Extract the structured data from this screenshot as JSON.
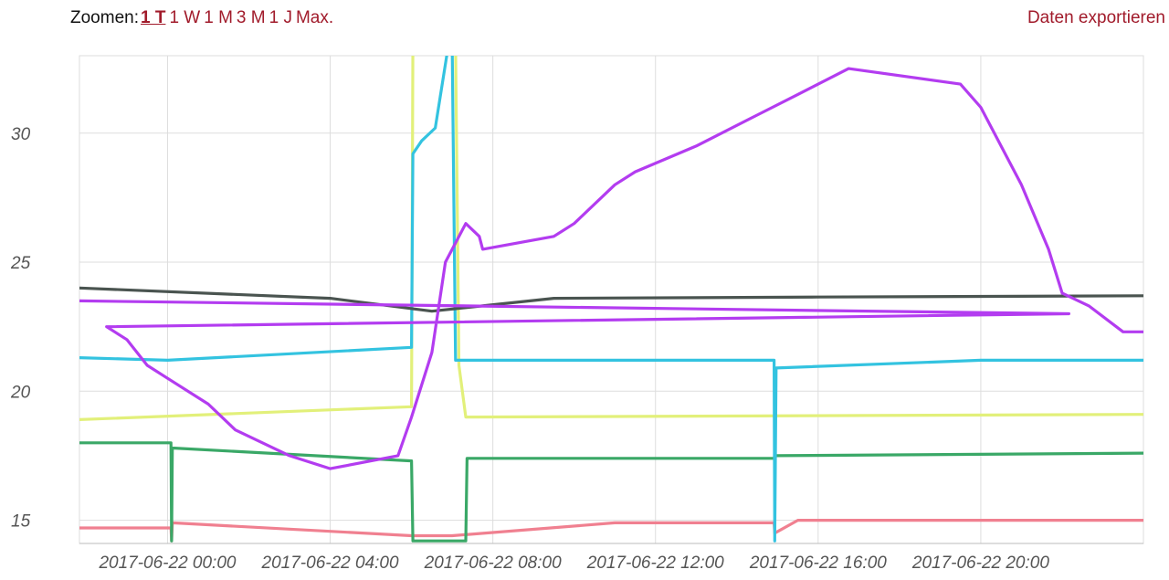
{
  "toolbar": {
    "zoom_label": "Zoomen:",
    "zoom_options": [
      "1 T",
      "1 W",
      "1 M",
      "3 M",
      "1 J",
      "Max."
    ],
    "active_zoom": "1 T",
    "export_label": "Daten exportieren"
  },
  "colors": {
    "link": "#a11b2b",
    "grid": "#dddddd",
    "axis": "#bbbbbb",
    "tick_text": "#555555"
  },
  "chart_data": {
    "type": "line",
    "x_start": "2017-06-21 21:50",
    "x_end": "2017-06-23 00:00",
    "ylim": [
      14.1,
      33.0
    ],
    "y_ticks": [
      15,
      20,
      25,
      30
    ],
    "x_ticks": [
      {
        "t": "2017-06-22 00:00",
        "label": "2017-06-22 00:00"
      },
      {
        "t": "2017-06-22 04:00",
        "label": "2017-06-22 04:00"
      },
      {
        "t": "2017-06-22 08:00",
        "label": "2017-06-22 08:00"
      },
      {
        "t": "2017-06-22 12:00",
        "label": "2017-06-22 12:00"
      },
      {
        "t": "2017-06-22 16:00",
        "label": "2017-06-22 16:00"
      },
      {
        "t": "2017-06-22 20:00",
        "label": "2017-06-22 20:00"
      }
    ],
    "grid": true,
    "series": [
      {
        "color": "#f08090",
        "points": [
          [
            "2017-06-21 21:50",
            14.7
          ],
          [
            "2017-06-22 00:05",
            14.7
          ],
          [
            "2017-06-22 00:06",
            14.2
          ],
          [
            "2017-06-22 00:07",
            14.9
          ],
          [
            "2017-06-22 06:00",
            14.4
          ],
          [
            "2017-06-22 07:00",
            14.4
          ],
          [
            "2017-06-22 11:00",
            14.9
          ],
          [
            "2017-06-22 14:55",
            14.9
          ],
          [
            "2017-06-22 14:56",
            14.5
          ],
          [
            "2017-06-22 15:30",
            15.0
          ],
          [
            "2017-06-23 00:00",
            15.0
          ]
        ]
      },
      {
        "color": "#3aa867",
        "points": [
          [
            "2017-06-21 21:50",
            18.0
          ],
          [
            "2017-06-22 00:05",
            18.0
          ],
          [
            "2017-06-22 00:06",
            14.2
          ],
          [
            "2017-06-22 00:07",
            17.8
          ],
          [
            "2017-06-22 06:00",
            17.3
          ],
          [
            "2017-06-22 06:02",
            14.2
          ],
          [
            "2017-06-22 07:20",
            14.2
          ],
          [
            "2017-06-22 07:22",
            17.4
          ],
          [
            "2017-06-22 14:55",
            17.4
          ],
          [
            "2017-06-22 14:56",
            17.5
          ],
          [
            "2017-06-23 00:00",
            17.6
          ]
        ]
      },
      {
        "color": "#e2f07a",
        "points": [
          [
            "2017-06-21 21:50",
            18.9
          ],
          [
            "2017-06-22 06:00",
            19.4
          ],
          [
            "2017-06-22 06:02",
            33.5
          ],
          [
            "2017-06-22 07:05",
            33.5
          ],
          [
            "2017-06-22 07:10",
            21.0
          ],
          [
            "2017-06-22 07:20",
            19.0
          ],
          [
            "2017-06-23 00:00",
            19.1
          ]
        ]
      },
      {
        "color": "#33c3e0",
        "points": [
          [
            "2017-06-21 21:50",
            21.3
          ],
          [
            "2017-06-22 00:00",
            21.2
          ],
          [
            "2017-06-22 06:00",
            21.7
          ],
          [
            "2017-06-22 06:02",
            29.2
          ],
          [
            "2017-06-22 06:15",
            29.7
          ],
          [
            "2017-06-22 06:35",
            30.2
          ],
          [
            "2017-06-22 06:55",
            33.5
          ],
          [
            "2017-06-22 07:00",
            33.5
          ],
          [
            "2017-06-22 07:05",
            21.2
          ],
          [
            "2017-06-22 14:55",
            21.2
          ],
          [
            "2017-06-22 14:56",
            14.2
          ],
          [
            "2017-06-22 14:58",
            20.9
          ],
          [
            "2017-06-22 20:00",
            21.2
          ],
          [
            "2017-06-23 00:00",
            21.2
          ]
        ]
      },
      {
        "color": "#4a5450",
        "points": [
          [
            "2017-06-21 21:50",
            24.0
          ],
          [
            "2017-06-22 04:00",
            23.6
          ],
          [
            "2017-06-22 06:30",
            23.1
          ],
          [
            "2017-06-22 09:30",
            23.6
          ],
          [
            "2017-06-22 16:00",
            23.65
          ],
          [
            "2017-06-23 00:00",
            23.7
          ]
        ]
      },
      {
        "color": "#b33cf0",
        "points": [
          [
            "2017-06-21 21:50",
            23.5
          ],
          [
            "2017-06-22 22:10",
            23.0
          ],
          [
            "2017-06-21 22:30",
            22.5
          ],
          [
            "2017-06-21 23:00",
            22.0
          ],
          [
            "2017-06-21 23:30",
            21.0
          ],
          [
            "2017-06-22 00:00",
            20.5
          ],
          [
            "2017-06-22 01:00",
            19.5
          ],
          [
            "2017-06-22 01:40",
            18.5
          ],
          [
            "2017-06-22 03:00",
            17.5
          ],
          [
            "2017-06-22 04:00",
            17.0
          ],
          [
            "2017-06-22 05:40",
            17.5
          ],
          [
            "2017-06-22 06:00",
            19.0
          ],
          [
            "2017-06-22 06:30",
            21.5
          ],
          [
            "2017-06-22 06:50",
            25.0
          ],
          [
            "2017-06-22 07:20",
            26.5
          ],
          [
            "2017-06-22 07:40",
            26.0
          ],
          [
            "2017-06-22 07:45",
            25.5
          ],
          [
            "2017-06-22 09:30",
            26.0
          ],
          [
            "2017-06-22 10:00",
            26.5
          ],
          [
            "2017-06-22 11:00",
            28.0
          ],
          [
            "2017-06-22 11:30",
            28.5
          ],
          [
            "2017-06-22 13:00",
            29.5
          ],
          [
            "2017-06-22 14:30",
            30.7
          ],
          [
            "2017-06-22 15:30",
            31.5
          ],
          [
            "2017-06-22 16:45",
            32.5
          ],
          [
            "2017-06-22 19:30",
            31.9
          ],
          [
            "2017-06-22 20:00",
            31.0
          ],
          [
            "2017-06-22 21:00",
            28.0
          ],
          [
            "2017-06-22 21:40",
            25.5
          ],
          [
            "2017-06-22 22:00",
            23.8
          ],
          [
            "2017-06-22 22:40",
            23.3
          ],
          [
            "2017-06-22 23:30",
            22.3
          ],
          [
            "2017-06-23 00:00",
            22.3
          ]
        ]
      }
    ]
  }
}
